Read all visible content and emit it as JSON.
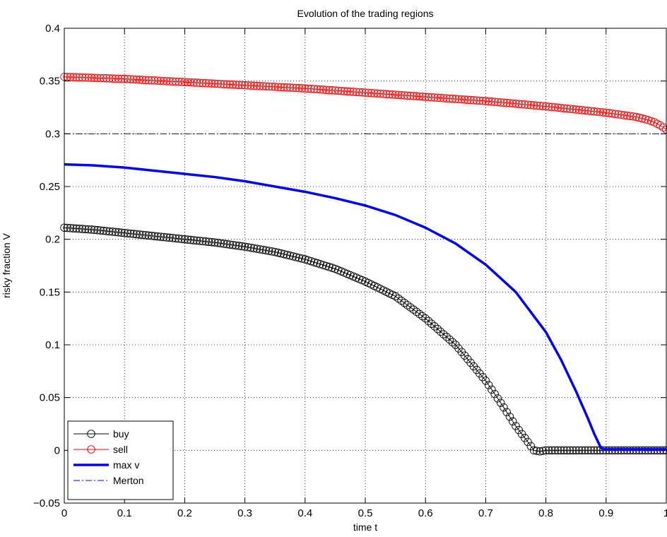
{
  "chart_data": {
    "type": "line",
    "title": "Evolution of the trading regions",
    "xlabel": "time t",
    "ylabel": "risky fraction V",
    "xlim": [
      0,
      1
    ],
    "ylim": [
      -0.05,
      0.4
    ],
    "xticks": [
      0,
      0.1,
      0.2,
      0.3,
      0.4,
      0.5,
      0.6,
      0.7,
      0.8,
      0.9,
      1
    ],
    "xtick_labels": [
      "0",
      "0.1",
      "0.2",
      "0.3",
      "0.4",
      "0.5",
      "0.6",
      "0.7",
      "0.8",
      "0.9",
      "1"
    ],
    "yticks": [
      -0.05,
      0,
      0.05,
      0.1,
      0.15,
      0.2,
      0.25,
      0.3,
      0.35,
      0.4
    ],
    "ytick_labels": [
      "−0.05",
      "0",
      "0.05",
      "0.1",
      "0.15",
      "0.2",
      "0.25",
      "0.3",
      "0.35",
      "0.4"
    ],
    "grid": true,
    "legend_position": "bottom-left",
    "series": [
      {
        "name": "buy",
        "color": "#000000",
        "style": "line-circle-markers",
        "x": [
          0,
          0.05,
          0.1,
          0.15,
          0.2,
          0.25,
          0.3,
          0.35,
          0.4,
          0.45,
          0.5,
          0.55,
          0.6,
          0.65,
          0.7,
          0.725,
          0.75,
          0.77,
          0.78,
          0.79,
          0.8,
          0.85,
          0.9,
          0.95,
          1.0
        ],
        "y": [
          0.211,
          0.209,
          0.206,
          0.203,
          0.2,
          0.197,
          0.193,
          0.188,
          0.181,
          0.172,
          0.16,
          0.146,
          0.125,
          0.1,
          0.066,
          0.045,
          0.023,
          0.008,
          0.0,
          -0.001,
          0,
          0,
          0,
          0,
          0
        ]
      },
      {
        "name": "sell",
        "color": "#ff0000",
        "style": "line-circle-markers",
        "x": [
          0,
          0.1,
          0.2,
          0.3,
          0.4,
          0.5,
          0.6,
          0.7,
          0.8,
          0.85,
          0.9,
          0.95,
          0.97,
          0.98,
          0.99,
          1.0
        ],
        "y": [
          0.354,
          0.352,
          0.349,
          0.346,
          0.343,
          0.339,
          0.335,
          0.331,
          0.326,
          0.323,
          0.32,
          0.316,
          0.313,
          0.311,
          0.308,
          0.304
        ]
      },
      {
        "name": "max v",
        "color": "#0000ff",
        "style": "thick-line",
        "x": [
          0,
          0.05,
          0.1,
          0.15,
          0.2,
          0.25,
          0.3,
          0.35,
          0.4,
          0.45,
          0.5,
          0.55,
          0.6,
          0.65,
          0.7,
          0.75,
          0.8,
          0.825,
          0.85,
          0.87,
          0.88,
          0.89,
          0.895,
          0.9,
          0.95,
          1.0
        ],
        "y": [
          0.271,
          0.27,
          0.268,
          0.265,
          0.262,
          0.259,
          0.255,
          0.25,
          0.245,
          0.239,
          0.232,
          0.223,
          0.211,
          0.196,
          0.176,
          0.15,
          0.112,
          0.086,
          0.056,
          0.03,
          0.016,
          0.004,
          0.001,
          0.001,
          0.001,
          0.001
        ]
      },
      {
        "name": "Merton",
        "color": "#0000ff",
        "style": "dash-dot-line",
        "x": [
          0,
          1
        ],
        "y": [
          0.3,
          0.3
        ]
      }
    ]
  }
}
